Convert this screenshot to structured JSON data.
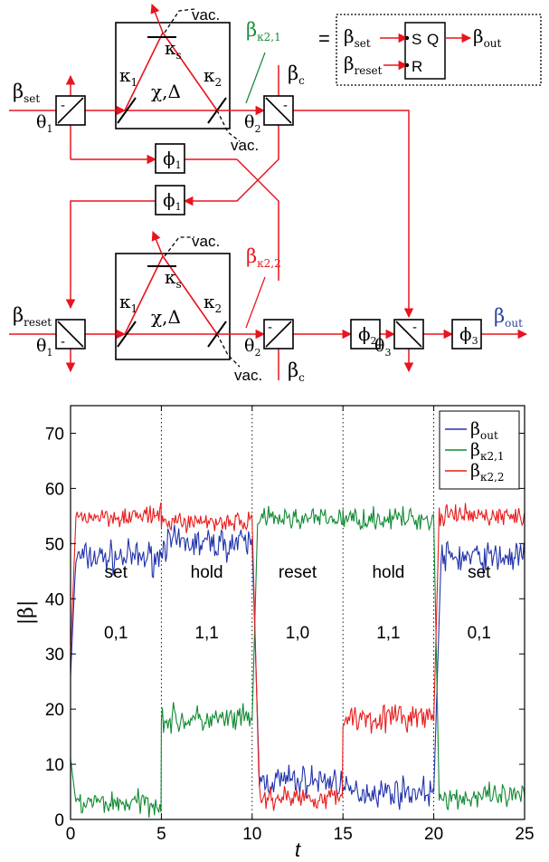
{
  "diagram": {
    "greek": {
      "beta": "β",
      "kappa": "κ",
      "chi": "χ",
      "Delta": "Δ",
      "theta": "θ",
      "phi": "ϕ"
    },
    "subscripts": {
      "one": "1",
      "two": "2",
      "three": "3",
      "s": "s",
      "set": "set",
      "reset": "reset",
      "c": "c",
      "out": "out",
      "k21": "κ2,1",
      "k22": "κ2,2"
    },
    "labels": {
      "vac": "vac.",
      "chi_delta": "χ,Δ",
      "equals": "=",
      "minus": "-",
      "ff_S": "S",
      "ff_Q": "Q",
      "ff_R": "R"
    },
    "colors": {
      "beam": "#e8141e",
      "black": "#000000",
      "green": "#1a8a3a",
      "blue": "#2a3fa0"
    }
  },
  "chart_data": {
    "type": "line",
    "xlabel": "t",
    "ylabel": "|β|",
    "xlim": [
      0,
      25
    ],
    "ylim": [
      0,
      75
    ],
    "xticks": [
      0,
      5,
      10,
      15,
      20,
      25
    ],
    "yticks": [
      0,
      10,
      20,
      30,
      40,
      50,
      60,
      70
    ],
    "vlines": [
      5,
      10,
      15,
      20
    ],
    "legend": {
      "placement": "top-right",
      "entries": [
        {
          "base": "β",
          "sub": "out",
          "color": "#2233aa"
        },
        {
          "base": "β",
          "sub": "κ2,1",
          "color": "#118a33"
        },
        {
          "base": "β",
          "sub": "κ2,2",
          "color": "#e81c1c"
        }
      ]
    },
    "phases": [
      {
        "name": "set",
        "values": "0,1",
        "x": 2.5
      },
      {
        "name": "hold",
        "values": "1,1",
        "x": 7.5
      },
      {
        "name": "reset",
        "values": "1,0",
        "x": 12.5
      },
      {
        "name": "hold",
        "values": "1,1",
        "x": 17.5
      },
      {
        "name": "set",
        "values": "0,1",
        "x": 22.5
      }
    ],
    "phase_label_y": [
      45,
      34
    ],
    "series": [
      {
        "name": "β_out",
        "color": "#2233aa",
        "levels": [
          {
            "from": 0,
            "to": 0.3,
            "start": 26,
            "value": 48
          },
          {
            "from": 0.3,
            "to": 5,
            "value": 47.5,
            "noise": 2.0
          },
          {
            "from": 5,
            "to": 10,
            "value": 50,
            "noise": 2.0
          },
          {
            "from": 10,
            "to": 10.4,
            "start": 50,
            "value": 7
          },
          {
            "from": 10.4,
            "to": 15,
            "value": 7,
            "noise": 2.0
          },
          {
            "from": 15,
            "to": 20,
            "value": 5,
            "noise": 1.8
          },
          {
            "from": 20,
            "to": 20.4,
            "start": 5,
            "value": 47
          },
          {
            "from": 20.4,
            "to": 25,
            "value": 47.5,
            "noise": 2.0
          }
        ]
      },
      {
        "name": "β_κ2,1",
        "color": "#118a33",
        "levels": [
          {
            "from": 0,
            "to": 0.3,
            "start": 11,
            "value": 3
          },
          {
            "from": 0.3,
            "to": 5,
            "value": 3,
            "noise": 1.6
          },
          {
            "from": 5,
            "to": 10,
            "value": 18,
            "noise": 1.8
          },
          {
            "from": 10,
            "to": 10.3,
            "start": 18,
            "value": 54
          },
          {
            "from": 10.3,
            "to": 15,
            "value": 54.5,
            "noise": 1.4
          },
          {
            "from": 15,
            "to": 20,
            "value": 54.5,
            "noise": 1.4
          },
          {
            "from": 20,
            "to": 20.3,
            "start": 54,
            "value": 4
          },
          {
            "from": 20.3,
            "to": 25,
            "value": 4,
            "noise": 1.6
          }
        ]
      },
      {
        "name": "β_κ2,2",
        "color": "#e81c1c",
        "levels": [
          {
            "from": 0,
            "to": 0.3,
            "start": 30,
            "value": 55
          },
          {
            "from": 0.3,
            "to": 5,
            "value": 55,
            "noise": 1.3
          },
          {
            "from": 5,
            "to": 10,
            "value": 54,
            "noise": 1.3
          },
          {
            "from": 10,
            "to": 10.4,
            "start": 54,
            "value": 4
          },
          {
            "from": 10.4,
            "to": 15,
            "value": 4,
            "noise": 1.5
          },
          {
            "from": 15,
            "to": 20,
            "value": 18.5,
            "noise": 1.8
          },
          {
            "from": 20,
            "to": 20.3,
            "start": 18,
            "value": 55
          },
          {
            "from": 20.3,
            "to": 25,
            "value": 55,
            "noise": 1.3
          }
        ]
      }
    ]
  }
}
